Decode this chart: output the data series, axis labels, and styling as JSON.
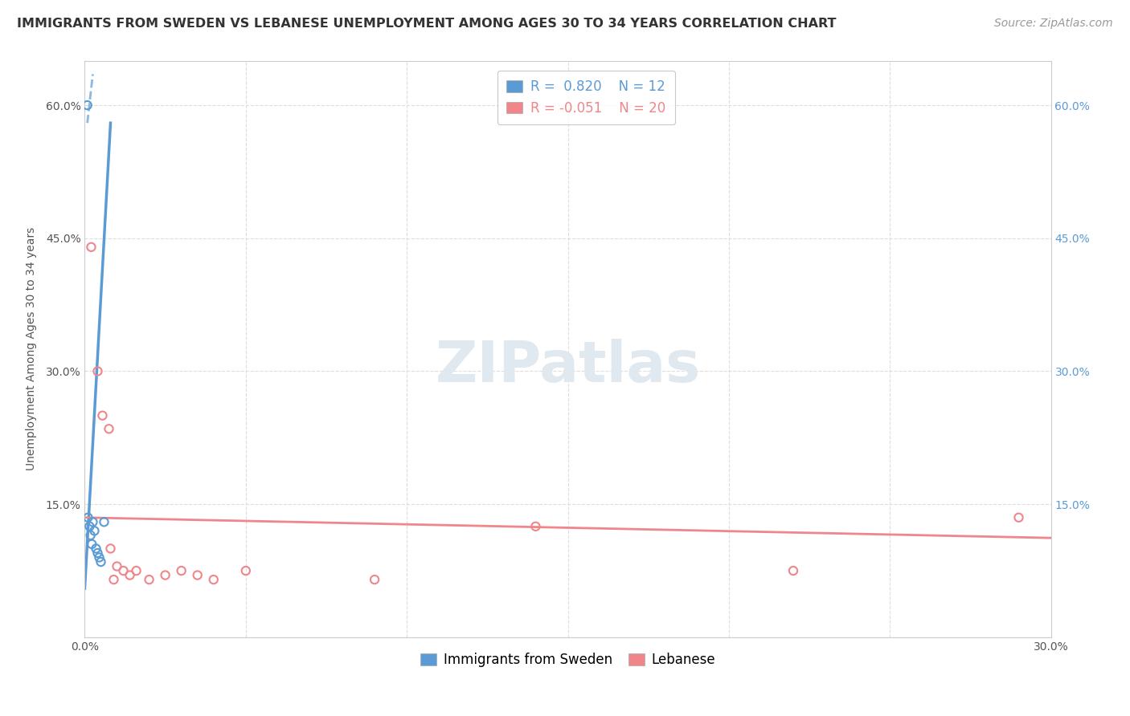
{
  "title": "IMMIGRANTS FROM SWEDEN VS LEBANESE UNEMPLOYMENT AMONG AGES 30 TO 34 YEARS CORRELATION CHART",
  "source": "Source: ZipAtlas.com",
  "ylabel": "Unemployment Among Ages 30 to 34 years",
  "xlim": [
    0,
    0.3
  ],
  "ylim": [
    0,
    0.65
  ],
  "xtick_positions": [
    0.0,
    0.05,
    0.1,
    0.15,
    0.2,
    0.25,
    0.3
  ],
  "xtick_labels": [
    "0.0%",
    "",
    "",
    "",
    "",
    "",
    "30.0%"
  ],
  "ytick_positions": [
    0.0,
    0.15,
    0.3,
    0.45,
    0.6
  ],
  "ytick_labels_left": [
    "",
    "15.0%",
    "30.0%",
    "45.0%",
    "60.0%"
  ],
  "ytick_labels_right": [
    "",
    "15.0%",
    "30.0%",
    "45.0%",
    "60.0%"
  ],
  "sweden_color": "#5B9BD5",
  "lebanese_color": "#F0868A",
  "sweden_R": 0.82,
  "sweden_N": 12,
  "lebanese_R": -0.051,
  "lebanese_N": 20,
  "watermark_text": "ZIPatlas",
  "sweden_points": [
    [
      0.0008,
      0.6
    ],
    [
      0.001,
      0.135
    ],
    [
      0.0015,
      0.125
    ],
    [
      0.0018,
      0.115
    ],
    [
      0.0022,
      0.105
    ],
    [
      0.0025,
      0.13
    ],
    [
      0.003,
      0.12
    ],
    [
      0.0035,
      0.1
    ],
    [
      0.004,
      0.095
    ],
    [
      0.0045,
      0.09
    ],
    [
      0.005,
      0.085
    ],
    [
      0.006,
      0.13
    ]
  ],
  "lebanese_points": [
    [
      0.002,
      0.44
    ],
    [
      0.004,
      0.3
    ],
    [
      0.0055,
      0.25
    ],
    [
      0.0075,
      0.235
    ],
    [
      0.008,
      0.1
    ],
    [
      0.009,
      0.065
    ],
    [
      0.01,
      0.08
    ],
    [
      0.012,
      0.075
    ],
    [
      0.014,
      0.07
    ],
    [
      0.016,
      0.075
    ],
    [
      0.02,
      0.065
    ],
    [
      0.025,
      0.07
    ],
    [
      0.03,
      0.075
    ],
    [
      0.035,
      0.07
    ],
    [
      0.04,
      0.065
    ],
    [
      0.05,
      0.075
    ],
    [
      0.09,
      0.065
    ],
    [
      0.14,
      0.125
    ],
    [
      0.22,
      0.075
    ],
    [
      0.29,
      0.135
    ]
  ],
  "sweden_trendline_solid": [
    [
      0.0,
      0.055
    ],
    [
      0.008,
      0.58
    ]
  ],
  "sweden_trendline_dashed": [
    [
      0.0008,
      0.58
    ],
    [
      0.0025,
      0.635
    ]
  ],
  "lebanese_trendline": [
    [
      0.0,
      0.135
    ],
    [
      0.3,
      0.112
    ]
  ],
  "grid_color": "#DDDDDD",
  "grid_linestyle": "--",
  "background_color": "#FFFFFF",
  "title_color": "#333333",
  "title_fontsize": 11.5,
  "axis_label_fontsize": 10,
  "tick_fontsize": 10,
  "legend_fontsize": 12,
  "source_fontsize": 10,
  "marker_size": 55,
  "marker_linewidth": 1.5
}
